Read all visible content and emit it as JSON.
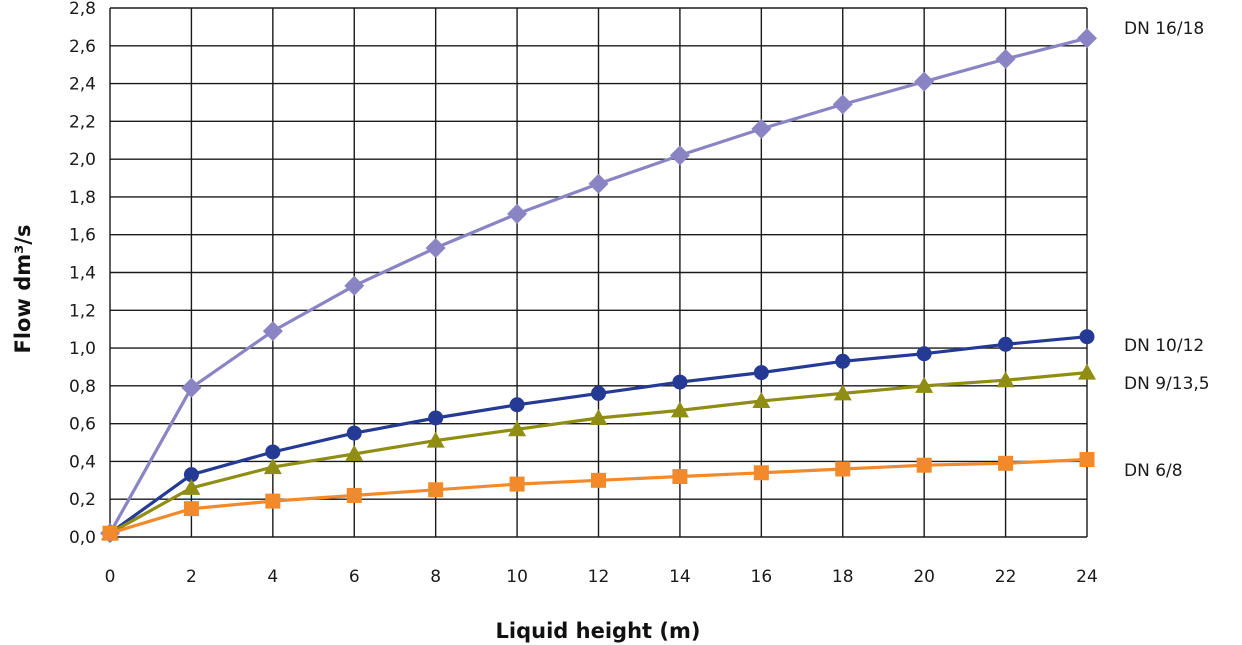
{
  "chart_data": {
    "type": "line",
    "title": "",
    "xlabel": "Liquid height (m)",
    "ylabel": "Flow dm³/s",
    "x": [
      0,
      2,
      4,
      6,
      8,
      10,
      12,
      14,
      16,
      18,
      20,
      22,
      24
    ],
    "x_ticks": [
      "0",
      "2",
      "4",
      "6",
      "8",
      "10",
      "12",
      "14",
      "16",
      "18",
      "20",
      "22",
      "24"
    ],
    "y_ticks": [
      "0,0",
      "0,2",
      "0,4",
      "0,6",
      "0,8",
      "1,0",
      "1,2",
      "1,4",
      "1,6",
      "1,8",
      "2,0",
      "2,2",
      "2,4",
      "2,6",
      "2,8"
    ],
    "xlim": [
      0,
      24
    ],
    "ylim": [
      0,
      2.8
    ],
    "grid": true,
    "legend": "labels at right end of each line",
    "series": [
      {
        "name": "DN 16/18",
        "marker": "diamond",
        "color": "#8A84C4",
        "values": [
          0.02,
          0.79,
          1.09,
          1.33,
          1.53,
          1.71,
          1.87,
          2.02,
          2.16,
          2.29,
          2.41,
          2.53,
          2.64
        ]
      },
      {
        "name": "DN 10/12",
        "marker": "circle",
        "color": "#243A94",
        "values": [
          0.02,
          0.33,
          0.45,
          0.55,
          0.63,
          0.7,
          0.76,
          0.82,
          0.87,
          0.93,
          0.97,
          1.02,
          1.06
        ]
      },
      {
        "name": "DN 9/13,5",
        "marker": "triangle",
        "color": "#8F8D14",
        "values": [
          0.02,
          0.26,
          0.37,
          0.44,
          0.51,
          0.57,
          0.63,
          0.67,
          0.72,
          0.76,
          0.8,
          0.83,
          0.87
        ]
      },
      {
        "name": "DN 6/8",
        "marker": "square",
        "color": "#F28A2C",
        "values": [
          0.02,
          0.15,
          0.19,
          0.22,
          0.25,
          0.28,
          0.3,
          0.32,
          0.34,
          0.36,
          0.38,
          0.39,
          0.41
        ]
      }
    ]
  }
}
